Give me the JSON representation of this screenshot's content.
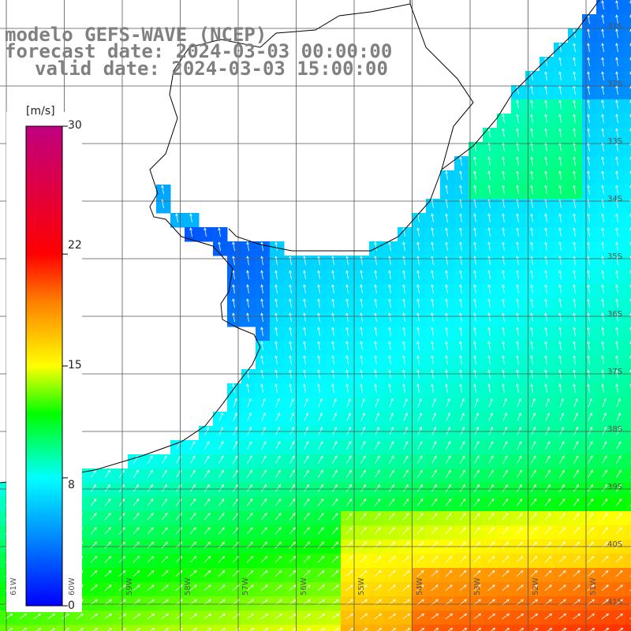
{
  "title": {
    "model": "modelo GEFS-WAVE (NCEP)",
    "forecast": "forecast date: 2024-03-03 00:00:00",
    "valid": "valid date: 2024-03-03 15:00:00"
  },
  "colorbar": {
    "unit": "[m/s]",
    "min": 0,
    "max": 30,
    "ticks": [
      "30",
      "22",
      "15",
      "8",
      "0"
    ],
    "tick_values": [
      30,
      22,
      15,
      8,
      0
    ],
    "colors": [
      "#0000ff",
      "#0080ff",
      "#00ffff",
      "#00ff00",
      "#ffff00",
      "#ff8000",
      "#ff0000",
      "#c00080"
    ]
  },
  "map": {
    "land_color": "#ffffff",
    "coast_color": "#000000",
    "grid_color": "#555555",
    "lat_labels": [
      "31S",
      "32S",
      "33S",
      "34S",
      "35S",
      "36S",
      "37S",
      "38S",
      "39S",
      "40S",
      "41S"
    ],
    "lon_labels": [
      "61W",
      "60W",
      "59W",
      "58W",
      "57W",
      "56W",
      "55W",
      "54W",
      "53W",
      "52W",
      "51W"
    ],
    "arrows": "white wind vectors"
  }
}
